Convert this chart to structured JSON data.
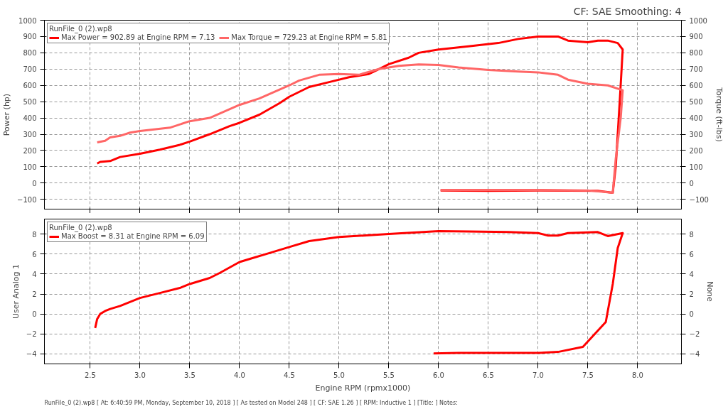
{
  "chart_data": [
    {
      "type": "line",
      "subtitle": "CF: SAE Smoothing: 4",
      "ylabel": "Power (hp)",
      "y2label": "Torque (ft-lbs)",
      "legend_title": "RunFile_0 (2).wp8",
      "legend": "top left",
      "grid": true,
      "tick_labels": "y",
      "xlim": [
        2.04,
        8.44
      ],
      "xticks": [
        2.5,
        3,
        3.5,
        4,
        4.5,
        5,
        5.5,
        6,
        6.5,
        7,
        7.5,
        8
      ],
      "ylim": [
        -160,
        1000
      ],
      "yticks": [
        -100,
        0,
        100,
        200,
        300,
        400,
        500,
        600,
        700,
        800,
        900,
        1000
      ],
      "y2lim": [
        -160,
        1000
      ],
      "y2ticks": [
        -100,
        0,
        100,
        200,
        300,
        400,
        500,
        600,
        700,
        800,
        900,
        1000
      ],
      "series": [
        {
          "name": "Max Power = 902.89 at Engine RPM = 7.13",
          "color": "#ff0000",
          "x": [
            2.57,
            2.6,
            2.7,
            2.8,
            3.0,
            3.2,
            3.4,
            3.5,
            3.7,
            3.9,
            4.0,
            4.2,
            4.4,
            4.5,
            4.7,
            4.9,
            5.1,
            5.3,
            5.4,
            5.5,
            5.7,
            5.8,
            6.0,
            6.3,
            6.6,
            6.8,
            7.0,
            7.2,
            7.3,
            7.5,
            7.6,
            7.7,
            7.8,
            7.85,
            7.82,
            7.78,
            7.75,
            7.6,
            7.0,
            6.5,
            6.02
          ],
          "values": [
            120,
            130,
            135,
            160,
            180,
            205,
            235,
            255,
            300,
            350,
            370,
            420,
            490,
            530,
            590,
            620,
            650,
            670,
            700,
            730,
            770,
            800,
            820,
            840,
            860,
            885,
            900,
            900,
            875,
            865,
            875,
            875,
            860,
            820,
            500,
            100,
            -60,
            -48,
            -45,
            -48,
            -45
          ]
        },
        {
          "name": "Max Torque = 729.23 at Engine RPM = 5.81",
          "color": "#ff6666",
          "x": [
            2.57,
            2.65,
            2.7,
            2.8,
            2.9,
            3.0,
            3.3,
            3.5,
            3.7,
            4.0,
            4.2,
            4.5,
            4.6,
            4.8,
            5.0,
            5.2,
            5.4,
            5.6,
            5.8,
            6.0,
            6.2,
            6.5,
            6.8,
            7.0,
            7.2,
            7.3,
            7.5,
            7.7,
            7.85,
            7.83,
            7.78,
            7.75,
            7.5,
            7.0,
            6.02
          ],
          "values": [
            250,
            260,
            280,
            290,
            310,
            320,
            340,
            380,
            400,
            480,
            520,
            600,
            630,
            665,
            670,
            665,
            700,
            720,
            729,
            725,
            710,
            695,
            685,
            680,
            665,
            635,
            610,
            600,
            570,
            400,
            150,
            -60,
            -45,
            -42,
            -42
          ]
        }
      ]
    },
    {
      "type": "line",
      "xlabel": "Engine RPM (rpmx1000)",
      "ylabel": "User Analog 1",
      "y2label": "None",
      "legend_title": "RunFile_0 (2).wp8",
      "legend": "top left",
      "grid": true,
      "annotations": [
        "RunFile_0 (2).wp8 [ At: 6:40:59 PM, Monday, September 10, 2018 ] [ As tested on Model 248 ] [ CF: SAE 1.26 ] [ RPM: Inductive 1 ] [Title: ]  Notes:"
      ],
      "xlim": [
        2.04,
        8.44
      ],
      "xticks": [
        2.5,
        {
          "value": 3,
          "label": "3.0"
        },
        3.5,
        {
          "value": 4,
          "label": "4.0"
        },
        4.5,
        {
          "value": 5,
          "label": "5.0"
        },
        5.5,
        {
          "value": 6,
          "label": "6.0"
        },
        6.5,
        {
          "value": 7,
          "label": "7.0"
        },
        7.5,
        {
          "value": 8,
          "label": "8.0"
        }
      ],
      "ylim": [
        -5,
        9.5
      ],
      "yticks": [
        -4,
        -2,
        0,
        2,
        4,
        6,
        8
      ],
      "y2lim": [
        -5,
        9.5
      ],
      "y2ticks": [
        -4,
        -2,
        0,
        2,
        4,
        6,
        8
      ],
      "series": [
        {
          "name": "Max Boost = 8.31 at Engine RPM = 6.09",
          "color": "#ff0000",
          "x": [
            2.55,
            2.57,
            2.6,
            2.65,
            2.7,
            2.8,
            3.0,
            3.2,
            3.4,
            3.5,
            3.7,
            3.8,
            4.0,
            4.1,
            4.3,
            4.5,
            4.7,
            5.0,
            5.5,
            6.0,
            6.3,
            6.7,
            7.0,
            7.1,
            7.2,
            7.3,
            7.6,
            7.7,
            7.85,
            7.8,
            7.75,
            7.68,
            7.45,
            7.2,
            7.0,
            6.2,
            5.95
          ],
          "values": [
            -1.4,
            -0.5,
            0.0,
            0.3,
            0.5,
            0.8,
            1.6,
            2.1,
            2.6,
            3.0,
            3.6,
            4.1,
            5.2,
            5.5,
            6.1,
            6.7,
            7.3,
            7.7,
            8.0,
            8.3,
            8.25,
            8.2,
            8.1,
            7.85,
            7.85,
            8.1,
            8.2,
            7.8,
            8.1,
            6.6,
            3.0,
            -0.8,
            -3.3,
            -3.8,
            -3.9,
            -3.9,
            -3.95
          ]
        }
      ]
    }
  ]
}
